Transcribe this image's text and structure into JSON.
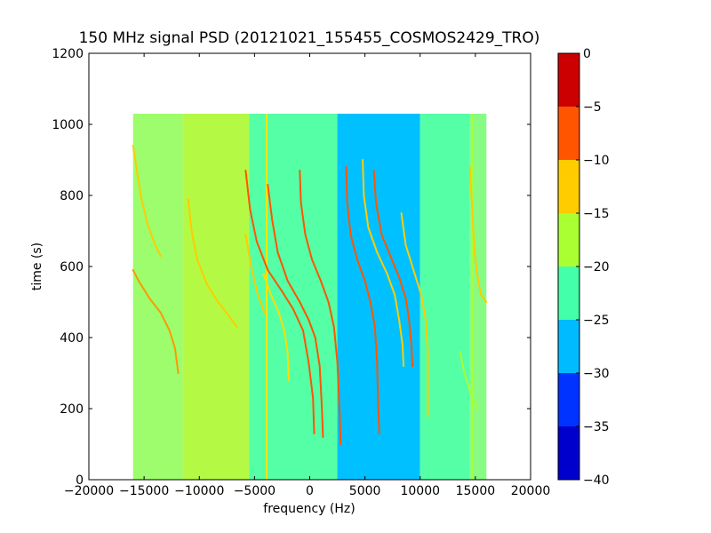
{
  "chart_data": {
    "type": "heatmap",
    "title": "150 MHz signal PSD (20121021_155455_COSMOS2429_TRO)",
    "xlabel": "frequency (Hz)",
    "ylabel": "time (s)",
    "xlim": [
      -20000,
      20000
    ],
    "ylim": [
      0,
      1200
    ],
    "x_ticks": [
      -20000,
      -15000,
      -10000,
      -5000,
      0,
      5000,
      10000,
      15000,
      20000
    ],
    "y_ticks": [
      0,
      200,
      400,
      600,
      800,
      1000,
      1200
    ],
    "grid": false,
    "data_extent": {
      "x": [
        -16000,
        16000
      ],
      "y": [
        0,
        1030
      ]
    },
    "colorbar": {
      "ticks": [
        0,
        -5,
        -10,
        -15,
        -20,
        -25,
        -30,
        -35,
        -40
      ],
      "levels": [
        {
          "from": -40,
          "to": -35,
          "color": "#0000cc"
        },
        {
          "from": -35,
          "to": -30,
          "color": "#0033ff"
        },
        {
          "from": -30,
          "to": -25,
          "color": "#00bbff"
        },
        {
          "from": -25,
          "to": -20,
          "color": "#44ffaa"
        },
        {
          "from": -20,
          "to": -15,
          "color": "#aaff33"
        },
        {
          "from": -15,
          "to": -10,
          "color": "#ffcc00"
        },
        {
          "from": -10,
          "to": -5,
          "color": "#ff5500"
        },
        {
          "from": -5,
          "to": 0,
          "color": "#cc0000"
        }
      ]
    },
    "background_bands": [
      {
        "x": [
          -16000,
          -11500
        ],
        "level": -22,
        "color": "#9dfd6c"
      },
      {
        "x": [
          -11500,
          -5500
        ],
        "level": -17,
        "color": "#b4fa45"
      },
      {
        "x": [
          -5500,
          2500
        ],
        "level": -22,
        "color": "#55ffa6"
      },
      {
        "x": [
          2500,
          10000
        ],
        "level": -27,
        "color": "#00c0ff"
      },
      {
        "x": [
          10000,
          14500
        ],
        "level": -22,
        "color": "#55ffa6"
      },
      {
        "x": [
          14500,
          16000
        ],
        "level": -20,
        "color": "#88fb84"
      }
    ],
    "vertical_lines": [
      {
        "x": -3900,
        "y": [
          0,
          1030
        ],
        "color": "#f5e600"
      },
      {
        "x": 14700,
        "y": [
          0,
          1030
        ],
        "color": "#aaff33"
      }
    ],
    "series": [
      {
        "points": [
          [
            -5800,
            870
          ],
          [
            -5400,
            760
          ],
          [
            -4800,
            670
          ],
          [
            -3800,
            590
          ],
          [
            -2500,
            530
          ],
          [
            -1500,
            480
          ],
          [
            -600,
            420
          ],
          [
            -100,
            330
          ],
          [
            300,
            230
          ],
          [
            400,
            130
          ]
        ],
        "color": "#ff5500"
      },
      {
        "points": [
          [
            -3800,
            830
          ],
          [
            -3400,
            730
          ],
          [
            -2900,
            640
          ],
          [
            -2000,
            560
          ],
          [
            -900,
            500
          ],
          [
            -100,
            450
          ],
          [
            500,
            400
          ],
          [
            900,
            320
          ],
          [
            1100,
            200
          ],
          [
            1200,
            120
          ]
        ],
        "color": "#ff5500"
      },
      {
        "points": [
          [
            -900,
            870
          ],
          [
            -800,
            780
          ],
          [
            -400,
            690
          ],
          [
            200,
            620
          ],
          [
            1000,
            560
          ],
          [
            1700,
            500
          ],
          [
            2200,
            430
          ],
          [
            2500,
            330
          ],
          [
            2700,
            200
          ],
          [
            2800,
            100
          ]
        ],
        "color": "#ff5500"
      },
      {
        "points": [
          [
            3300,
            880
          ],
          [
            3400,
            780
          ],
          [
            3700,
            690
          ],
          [
            4300,
            620
          ],
          [
            5000,
            560
          ],
          [
            5500,
            500
          ],
          [
            5900,
            430
          ],
          [
            6100,
            330
          ],
          [
            6200,
            210
          ],
          [
            6300,
            130
          ]
        ],
        "color": "#ff5500"
      },
      {
        "points": [
          [
            5800,
            870
          ],
          [
            6000,
            780
          ],
          [
            6500,
            690
          ],
          [
            7300,
            630
          ],
          [
            8100,
            570
          ],
          [
            8700,
            510
          ],
          [
            9000,
            450
          ],
          [
            9200,
            380
          ],
          [
            9300,
            320
          ]
        ],
        "color": "#ff5500"
      },
      {
        "points": [
          [
            -16000,
            590
          ],
          [
            -15500,
            560
          ],
          [
            -14500,
            510
          ],
          [
            -13500,
            470
          ],
          [
            -12700,
            420
          ],
          [
            -12200,
            370
          ],
          [
            -11900,
            300
          ]
        ],
        "color": "#ff9900"
      },
      {
        "points": [
          [
            -16000,
            940
          ],
          [
            -15700,
            880
          ],
          [
            -15300,
            800
          ],
          [
            -14700,
            720
          ],
          [
            -14000,
            660
          ],
          [
            -13500,
            630
          ]
        ],
        "color": "#ffcc00"
      },
      {
        "points": [
          [
            -11000,
            790
          ],
          [
            -10700,
            700
          ],
          [
            -10200,
            620
          ],
          [
            -9300,
            550
          ],
          [
            -8300,
            500
          ],
          [
            -7300,
            460
          ],
          [
            -6600,
            430
          ]
        ],
        "color": "#ffcc00"
      },
      {
        "points": [
          [
            -5800,
            690
          ],
          [
            -5300,
            600
          ],
          [
            -4700,
            520
          ],
          [
            -4100,
            470
          ]
        ],
        "color": "#ffcc00"
      },
      {
        "points": [
          [
            -4200,
            580
          ],
          [
            -3500,
            520
          ],
          [
            -2800,
            470
          ],
          [
            -2300,
            420
          ],
          [
            -2000,
            360
          ],
          [
            -1900,
            280
          ]
        ],
        "color": "#ffdd00"
      },
      {
        "points": [
          [
            4800,
            900
          ],
          [
            4900,
            800
          ],
          [
            5300,
            710
          ],
          [
            6100,
            640
          ],
          [
            7000,
            580
          ],
          [
            7700,
            520
          ],
          [
            8100,
            450
          ],
          [
            8400,
            380
          ],
          [
            8500,
            320
          ]
        ],
        "color": "#ffcc00"
      },
      {
        "points": [
          [
            8300,
            750
          ],
          [
            8700,
            660
          ],
          [
            9400,
            590
          ],
          [
            10100,
            520
          ],
          [
            10500,
            450
          ],
          [
            10700,
            360
          ],
          [
            10700,
            180
          ]
        ],
        "color": "#ffcc00"
      },
      {
        "points": [
          [
            14500,
            880
          ],
          [
            14700,
            770
          ],
          [
            14900,
            650
          ],
          [
            15200,
            570
          ],
          [
            15500,
            520
          ],
          [
            16000,
            500
          ]
        ],
        "color": "#ffcc00"
      },
      {
        "points": [
          [
            13600,
            360
          ],
          [
            14000,
            300
          ],
          [
            14500,
            250
          ],
          [
            15200,
            200
          ]
        ],
        "color": "#aaff33"
      }
    ]
  }
}
